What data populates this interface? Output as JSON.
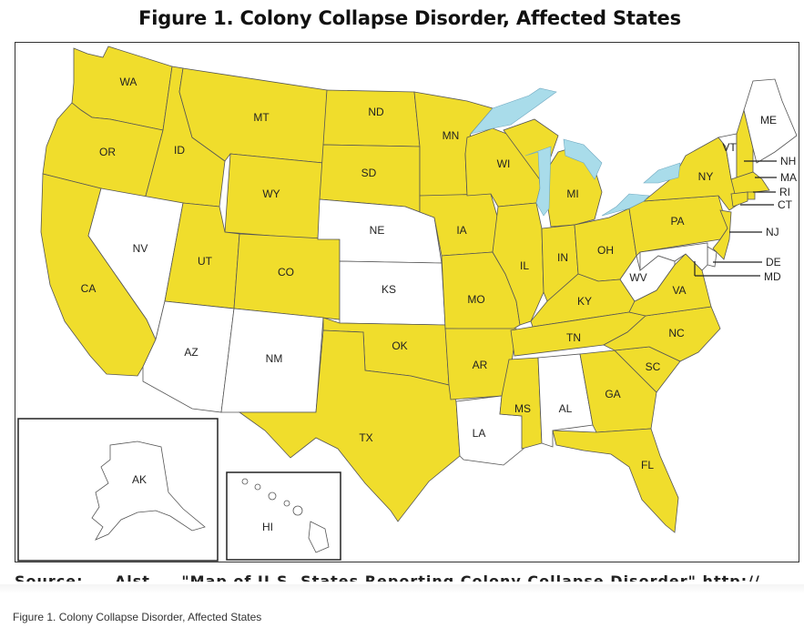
{
  "figure": {
    "title": "Figure 1. Colony Collapse Disorder, Affected States",
    "source_line": "Source: ... Alst ... \"Map of U.S. States Reporting Colony Collapse Disorder\" http://...",
    "caption": "Figure 1. Colony Collapse Disorder, Affected States"
  },
  "colors": {
    "affected": "#f0dd2c",
    "unaffected": "#ffffff",
    "lakes": "#a9dcea",
    "outline": "#555555"
  },
  "states": {
    "WA": {
      "label": "WA",
      "affected": true
    },
    "OR": {
      "label": "OR",
      "affected": true
    },
    "CA": {
      "label": "CA",
      "affected": true
    },
    "ID": {
      "label": "ID",
      "affected": true
    },
    "NV": {
      "label": "NV",
      "affected": false
    },
    "MT": {
      "label": "MT",
      "affected": true
    },
    "WY": {
      "label": "WY",
      "affected": true
    },
    "UT": {
      "label": "UT",
      "affected": true
    },
    "AZ": {
      "label": "AZ",
      "affected": false
    },
    "CO": {
      "label": "CO",
      "affected": true
    },
    "NM": {
      "label": "NM",
      "affected": false
    },
    "ND": {
      "label": "ND",
      "affected": true
    },
    "SD": {
      "label": "SD",
      "affected": true
    },
    "NE": {
      "label": "NE",
      "affected": false
    },
    "KS": {
      "label": "KS",
      "affected": false
    },
    "OK": {
      "label": "OK",
      "affected": true
    },
    "TX": {
      "label": "TX",
      "affected": true
    },
    "MN": {
      "label": "MN",
      "affected": true
    },
    "IA": {
      "label": "IA",
      "affected": true
    },
    "MO": {
      "label": "MO",
      "affected": true
    },
    "AR": {
      "label": "AR",
      "affected": true
    },
    "LA": {
      "label": "LA",
      "affected": false
    },
    "WI": {
      "label": "WI",
      "affected": true
    },
    "IL": {
      "label": "IL",
      "affected": true
    },
    "MI": {
      "label": "MI",
      "affected": true
    },
    "IN": {
      "label": "IN",
      "affected": true
    },
    "OH": {
      "label": "OH",
      "affected": true
    },
    "KY": {
      "label": "KY",
      "affected": true
    },
    "TN": {
      "label": "TN",
      "affected": true
    },
    "MS": {
      "label": "MS",
      "affected": true
    },
    "AL": {
      "label": "AL",
      "affected": false
    },
    "GA": {
      "label": "GA",
      "affected": true
    },
    "FL": {
      "label": "FL",
      "affected": true
    },
    "SC": {
      "label": "SC",
      "affected": true
    },
    "NC": {
      "label": "NC",
      "affected": true
    },
    "VA": {
      "label": "VA",
      "affected": true
    },
    "WV": {
      "label": "WV",
      "affected": false
    },
    "PA": {
      "label": "PA",
      "affected": true
    },
    "NY": {
      "label": "NY",
      "affected": true
    },
    "VT": {
      "label": "VT",
      "affected": false
    },
    "NH": {
      "label": "NH",
      "affected": true
    },
    "ME": {
      "label": "ME",
      "affected": false
    },
    "MA": {
      "label": "MA",
      "affected": true
    },
    "RI": {
      "label": "RI",
      "affected": true
    },
    "CT": {
      "label": "CT",
      "affected": true
    },
    "NJ": {
      "label": "NJ",
      "affected": true
    },
    "DE": {
      "label": "DE",
      "affected": false
    },
    "MD": {
      "label": "MD",
      "affected": false
    },
    "AK": {
      "label": "AK",
      "affected": false
    },
    "HI": {
      "label": "HI",
      "affected": false
    }
  }
}
